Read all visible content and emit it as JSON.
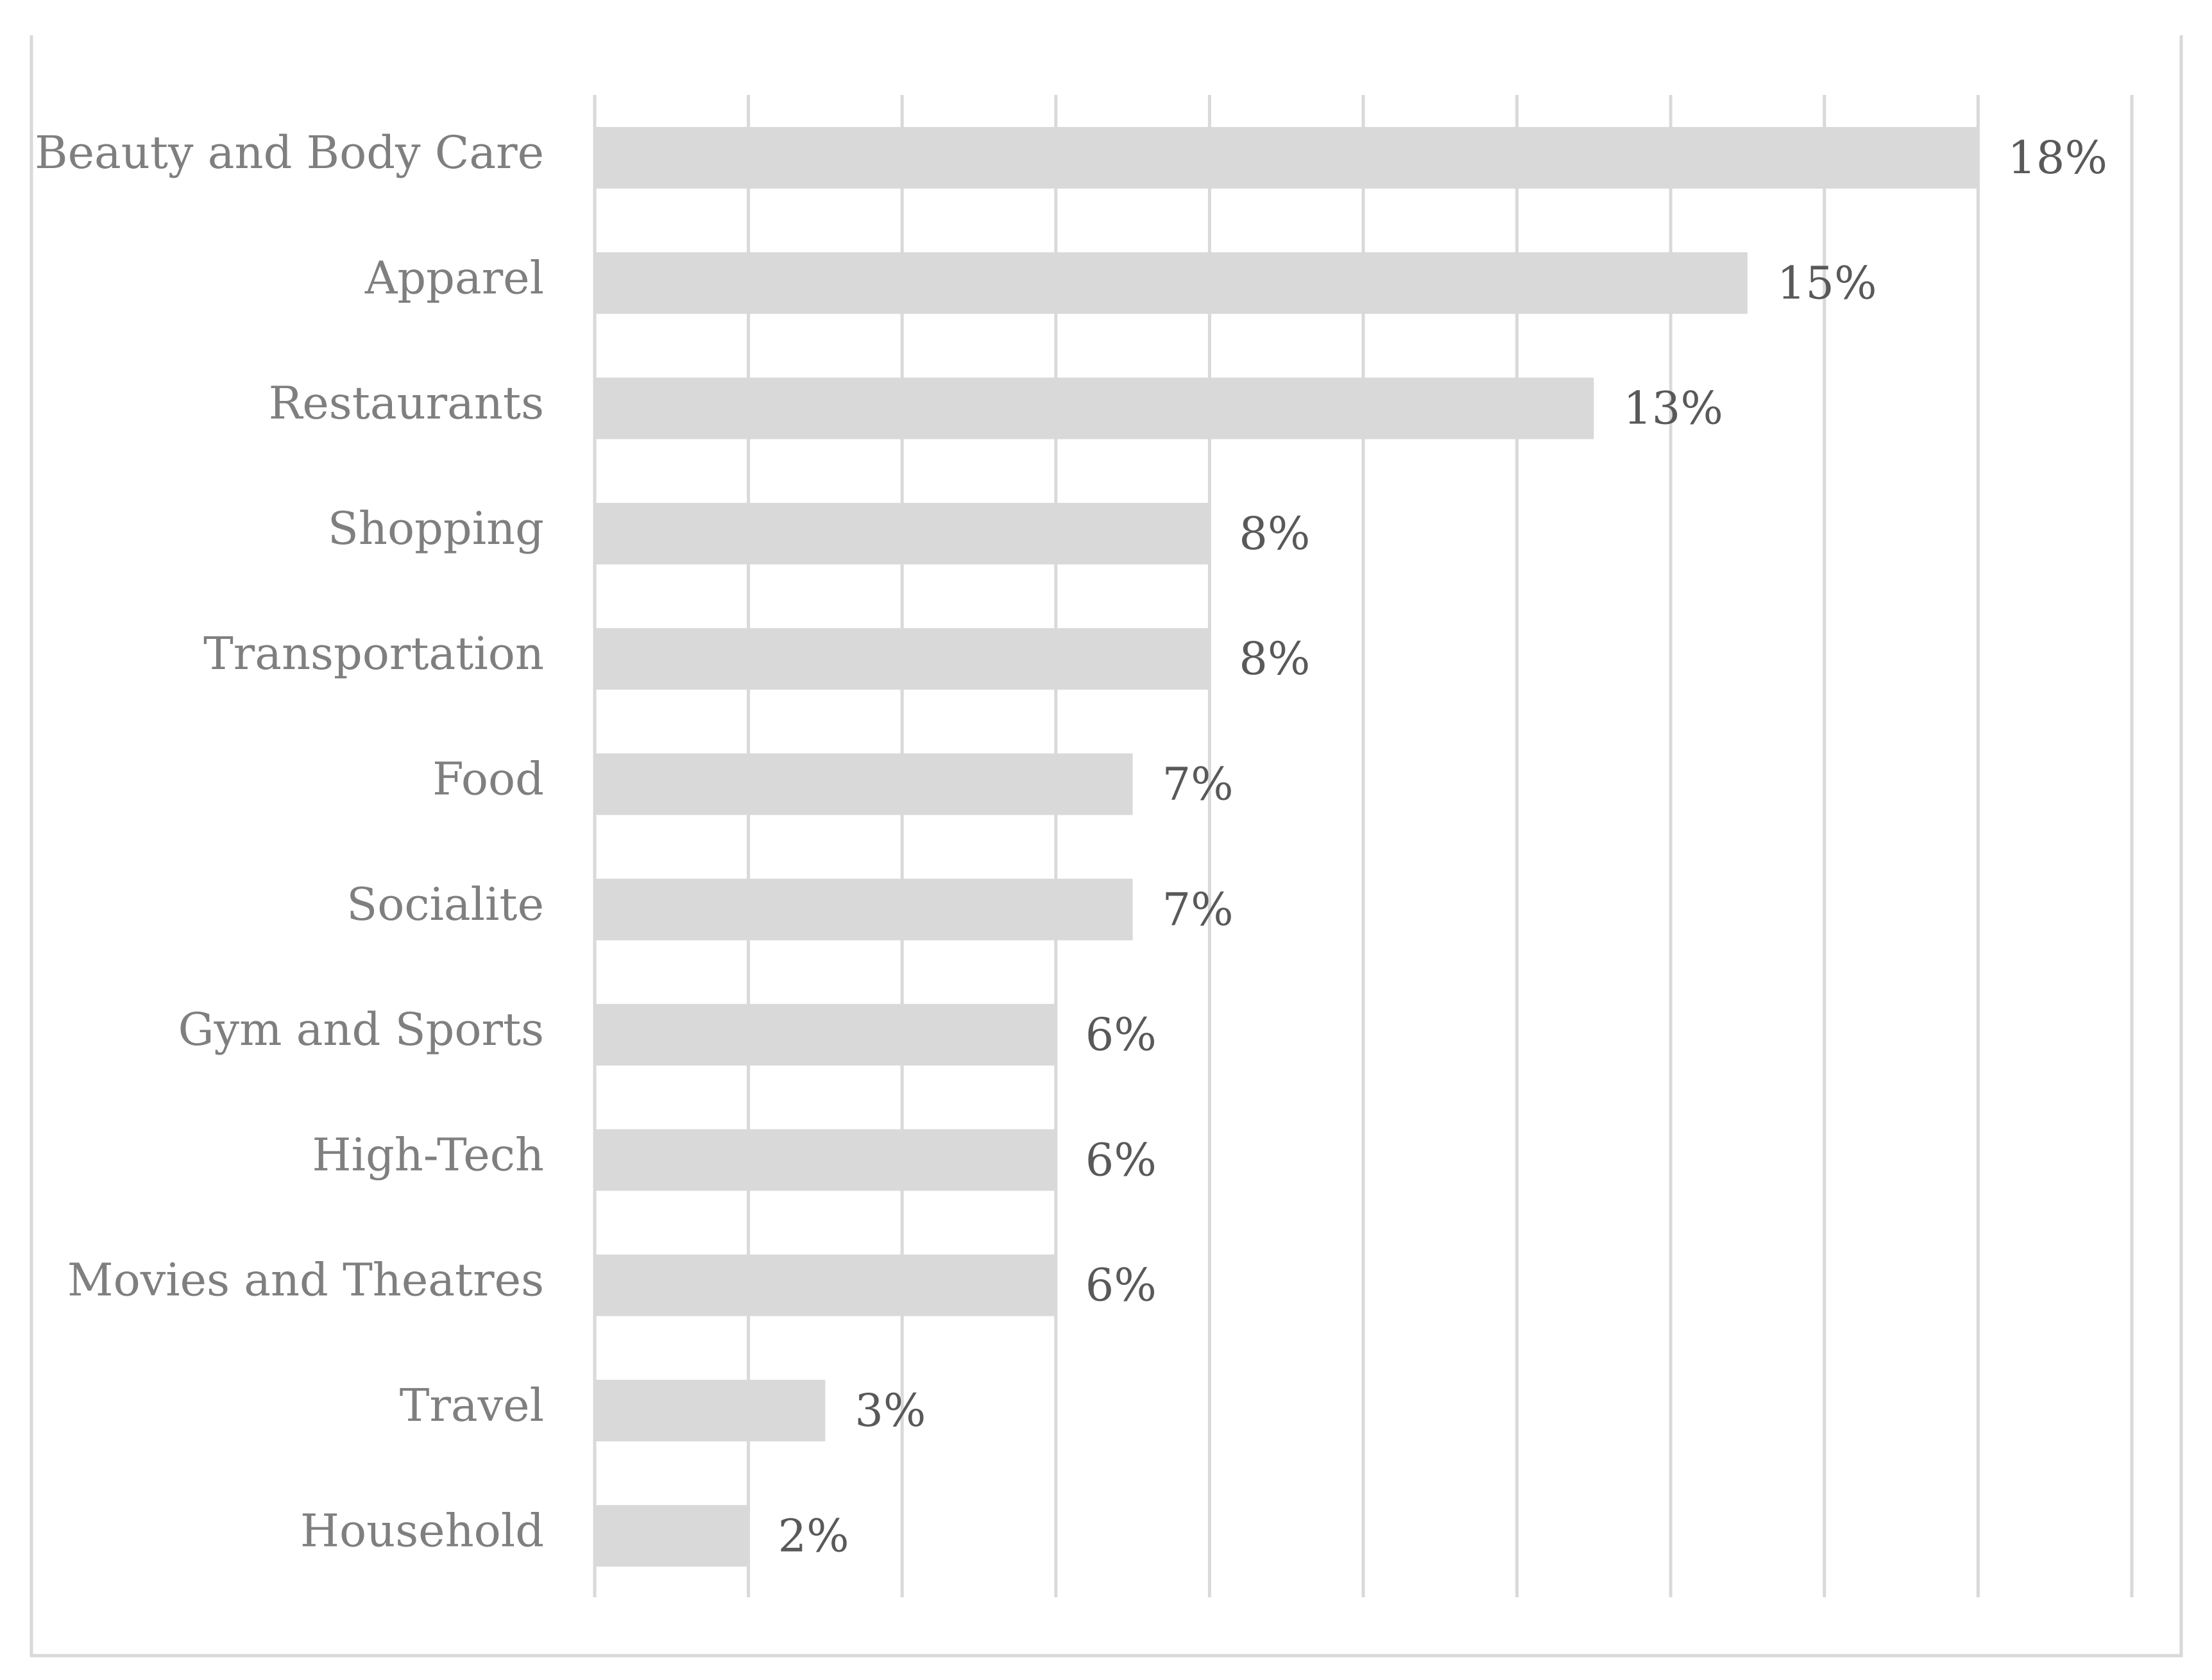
{
  "chart_data": {
    "type": "bar",
    "orientation": "horizontal",
    "title": "",
    "xlabel": "",
    "ylabel": "",
    "categories": [
      "Beauty and Body Care",
      "Apparel",
      "Restaurants",
      "Shopping",
      "Transportation",
      "Food",
      "Socialite",
      "Gym and Sports",
      "High-Tech",
      "Movies and Theatres",
      "Travel",
      "Household"
    ],
    "values": [
      18,
      15,
      13,
      8,
      8,
      7,
      7,
      6,
      6,
      6,
      3,
      2
    ],
    "value_labels": [
      "18%",
      "15%",
      "13%",
      "8%",
      "8%",
      "7%",
      "7%",
      "6%",
      "6%",
      "6%",
      "3%",
      "2%"
    ],
    "value_unit": "%",
    "xlim": [
      0,
      20
    ],
    "x_gridline_step": 2,
    "grid": true,
    "legend": "none",
    "colors": {
      "bar": "#d9d9d9",
      "grid": "#d9d9d9",
      "category_text": "#7f7f7f",
      "value_text": "#595959"
    }
  }
}
